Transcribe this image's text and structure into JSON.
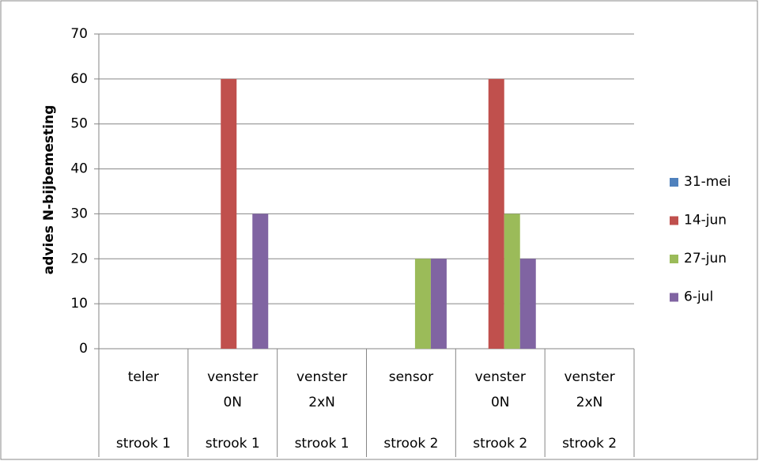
{
  "chart_data": {
    "type": "bar",
    "y_label": "advies N-bijbemesting",
    "categories": [
      "teler",
      "venster 0N",
      "venster 2xN",
      "sensor",
      "venster 0N",
      "venster 2xN"
    ],
    "groups": [
      "strook 1",
      "strook 1",
      "strook 1",
      "strook 2",
      "strook 2",
      "strook 2"
    ],
    "series": [
      {
        "name": "31-mei",
        "color": "#4f81bd",
        "values": [
          0,
          0,
          0,
          0,
          0,
          0
        ]
      },
      {
        "name": "14-jun",
        "color": "#c0504d",
        "values": [
          0,
          60,
          0,
          0,
          60,
          0
        ]
      },
      {
        "name": "27-jun",
        "color": "#9bbb59",
        "values": [
          0,
          0,
          0,
          20,
          30,
          0
        ]
      },
      {
        "name": "6-jul",
        "color": "#8064a2",
        "values": [
          0,
          30,
          0,
          20,
          20,
          0
        ]
      }
    ],
    "ylim": [
      0,
      70
    ],
    "yticks": [
      0,
      10,
      20,
      30,
      40,
      50,
      60,
      70
    ],
    "grid": true,
    "legend": "right"
  }
}
